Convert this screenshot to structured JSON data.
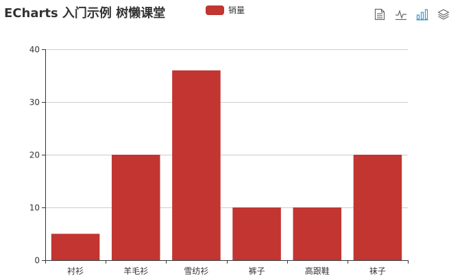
{
  "title": "ECharts 入门示例 树懒课堂",
  "legend": {
    "label": "销量",
    "color": "#c23531"
  },
  "toolbox": {
    "items": [
      {
        "name": "data-view-icon",
        "active": false
      },
      {
        "name": "line-chart-icon",
        "active": false
      },
      {
        "name": "bar-chart-icon",
        "active": true
      },
      {
        "name": "stack-icon",
        "active": false
      }
    ],
    "inactive_color": "#666666",
    "active_color": "#3e98c5"
  },
  "chart_data": {
    "type": "bar",
    "categories": [
      "衬衫",
      "羊毛衫",
      "雪纺衫",
      "裤子",
      "高跟鞋",
      "袜子"
    ],
    "series": [
      {
        "name": "销量",
        "values": [
          5,
          20,
          36,
          10,
          10,
          20
        ],
        "color": "#c23531"
      }
    ],
    "ylim": [
      0,
      40
    ],
    "yticks": [
      0,
      10,
      20,
      30,
      40
    ],
    "grid": true,
    "legend_position": "top-center"
  }
}
